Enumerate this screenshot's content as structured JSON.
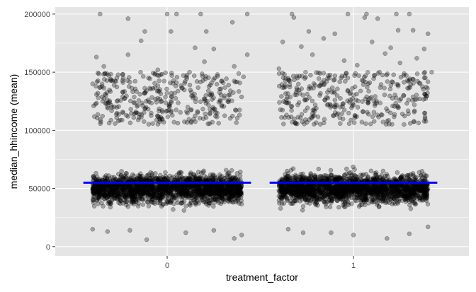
{
  "chart_data": {
    "type": "scatter",
    "xlabel": "treatment_factor",
    "ylabel": "median_hhincome (mean)",
    "categories": [
      "0",
      "1"
    ],
    "ylim": [
      -8000,
      206000
    ],
    "yticks": [
      0,
      50000,
      100000,
      150000,
      200000
    ],
    "ytick_labels": [
      "0",
      "50000",
      "100000",
      "150000",
      "200000"
    ],
    "grid": true,
    "point_color": "#000000",
    "point_opacity": 0.3,
    "mean_line_color": "#0000ff",
    "panel_background": "#e5e5e5",
    "grid_color": "#ffffff",
    "series": [
      {
        "category": "0",
        "mean": 55000,
        "dense_range": [
          18000,
          105000
        ],
        "outliers": [
          [
            -0.36,
            200000
          ],
          [
            0.0,
            200000
          ],
          [
            0.05,
            200000
          ],
          [
            0.43,
            200000
          ],
          [
            0.18,
            200000
          ],
          [
            -0.21,
            196000
          ],
          [
            0.35,
            193000
          ],
          [
            -0.12,
            185000
          ],
          [
            0.02,
            185000
          ],
          [
            0.21,
            185000
          ],
          [
            -0.14,
            177000
          ],
          [
            0.15,
            171000
          ],
          [
            0.25,
            170000
          ],
          [
            -0.21,
            165000
          ],
          [
            0.43,
            165000
          ],
          [
            -0.38,
            163000
          ],
          [
            0.2,
            159000
          ],
          [
            -0.34,
            155000
          ],
          [
            0.36,
            155000
          ],
          [
            -0.05,
            152000
          ],
          [
            0.12,
            150000
          ],
          [
            0.27,
            148000
          ],
          [
            -0.27,
            145000
          ],
          [
            -0.1,
            145000
          ],
          [
            0.41,
            146000
          ],
          [
            -0.3,
            143000
          ],
          [
            0.16,
            142000
          ],
          [
            0.05,
            141000
          ],
          [
            -0.4,
            140000
          ],
          [
            0.33,
            139000
          ],
          [
            -0.2,
            14000
          ],
          [
            0.1,
            12000
          ],
          [
            -0.32,
            13000
          ],
          [
            0.25,
            14000
          ],
          [
            0.4,
            10000
          ],
          [
            -0.11,
            6000
          ],
          [
            0.36,
            7000
          ],
          [
            -0.4,
            15000
          ]
        ]
      },
      {
        "category": "1",
        "mean": 55000,
        "dense_range": [
          18000,
          110000
        ],
        "outliers": [
          [
            -0.33,
            200000
          ],
          [
            -0.03,
            200000
          ],
          [
            0.07,
            200000
          ],
          [
            0.13,
            196000
          ],
          [
            0.23,
            200000
          ],
          [
            0.3,
            200000
          ],
          [
            -0.32,
            197000
          ],
          [
            0.06,
            197000
          ],
          [
            -0.24,
            185000
          ],
          [
            0.24,
            186000
          ],
          [
            0.4,
            183000
          ],
          [
            0.32,
            186000
          ],
          [
            -0.16,
            179000
          ],
          [
            -0.1,
            183000
          ],
          [
            -0.38,
            176000
          ],
          [
            0.1,
            176000
          ],
          [
            0.2,
            171000
          ],
          [
            -0.28,
            172000
          ],
          [
            0.38,
            170000
          ],
          [
            0.17,
            166000
          ],
          [
            -0.22,
            165000
          ],
          [
            0.34,
            162000
          ],
          [
            -0.05,
            160000
          ],
          [
            0.02,
            156000
          ],
          [
            0.25,
            158000
          ],
          [
            -0.4,
            153000
          ],
          [
            0.42,
            150000
          ],
          [
            0.14,
            150000
          ],
          [
            -0.3,
            145000
          ],
          [
            0.29,
            143000
          ],
          [
            -0.17,
            141000
          ],
          [
            0.08,
            140000
          ],
          [
            -0.12,
            12000
          ],
          [
            0.0,
            10000
          ],
          [
            0.18,
            7000
          ],
          [
            -0.35,
            15000
          ],
          [
            0.3,
            11000
          ],
          [
            0.4,
            17000
          ],
          [
            -0.27,
            12000
          ]
        ]
      }
    ]
  }
}
